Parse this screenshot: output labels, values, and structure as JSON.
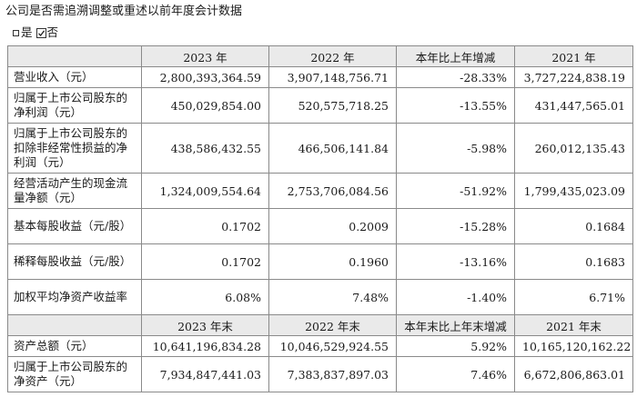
{
  "heading": "公司是否需追溯调整或重述以前年度会计数据",
  "option_yes": "是",
  "option_no": "否",
  "table1": {
    "headers": [
      "",
      "2023 年",
      "2022 年",
      "本年比上年增减",
      "2021 年"
    ],
    "rows": [
      {
        "label": "营业收入（元）",
        "values": [
          "2,800,393,364.59",
          "3,907,148,756.71",
          "-28.33%",
          "3,727,224,838.19"
        ]
      },
      {
        "label": "归属于上市公司股东的净利润（元）",
        "values": [
          "450,029,854.00",
          "520,575,718.25",
          "-13.55%",
          "431,447,565.01"
        ]
      },
      {
        "label": "归属于上市公司股东的扣除非经常性损益的净利润（元）",
        "values": [
          "438,586,432.55",
          "466,506,141.84",
          "-5.98%",
          "260,012,135.43"
        ]
      },
      {
        "label": "经营活动产生的现金流量净额（元）",
        "values": [
          "1,324,009,554.64",
          "2,753,706,084.56",
          "-51.92%",
          "1,799,435,023.09"
        ]
      },
      {
        "label": "基本每股收益（元/股）",
        "values": [
          "0.1702",
          "0.2009",
          "-15.28%",
          "0.1684"
        ]
      },
      {
        "label": "稀释每股收益（元/股）",
        "values": [
          "0.1702",
          "0.1960",
          "-13.16%",
          "0.1683"
        ]
      },
      {
        "label": "加权平均净资产收益率",
        "values": [
          "6.08%",
          "7.48%",
          "-1.40%",
          "6.71%"
        ]
      }
    ]
  },
  "table2": {
    "headers": [
      "",
      "2023 年末",
      "2022 年末",
      "本年末比上年末增减",
      "2021 年末"
    ],
    "rows": [
      {
        "label": "资产总额（元）",
        "values": [
          "10,641,196,834.28",
          "10,046,529,924.55",
          "5.92%",
          "10,165,120,162.22"
        ]
      },
      {
        "label": "归属于上市公司股东的净资产（元）",
        "values": [
          "7,934,847,441.03",
          "7,383,837,897.03",
          "7.46%",
          "6,672,806,863.01"
        ]
      }
    ]
  }
}
